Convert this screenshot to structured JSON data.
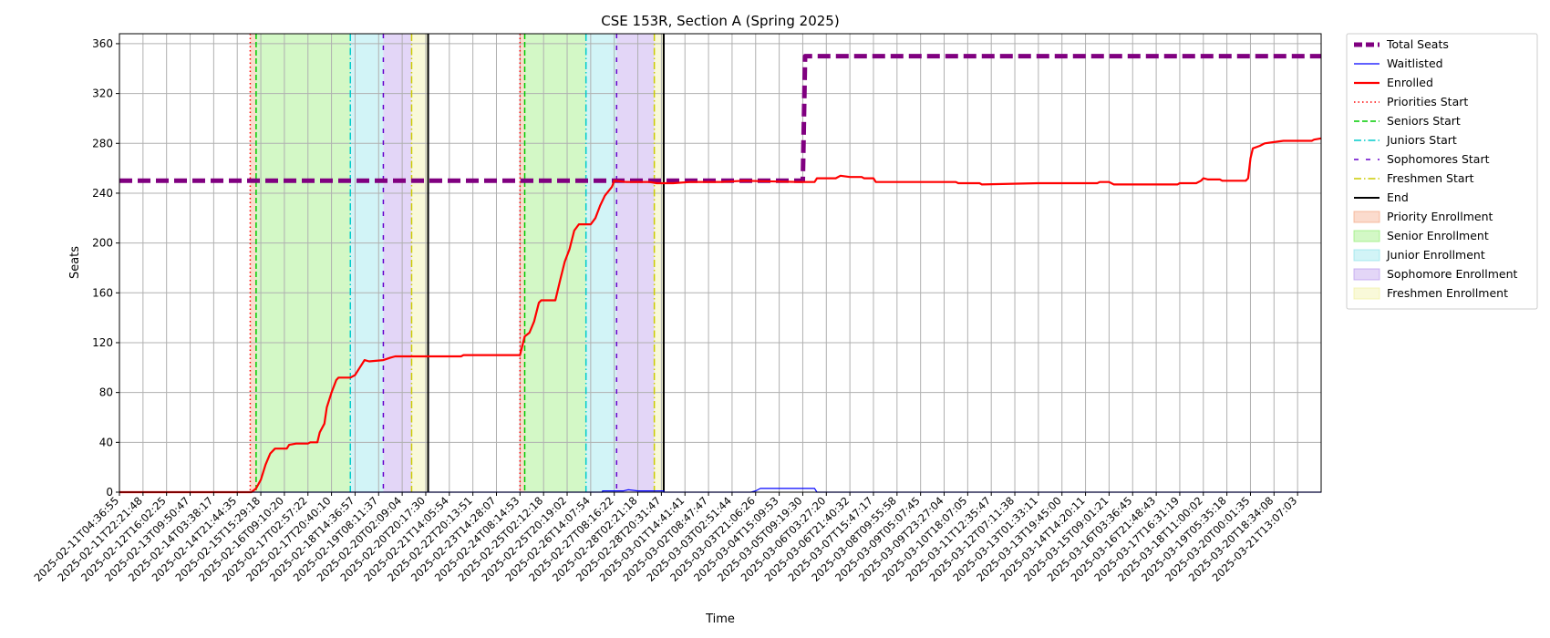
{
  "chart_data": {
    "type": "line",
    "title": "CSE 153R, Section A (Spring 2025)",
    "xlabel": "Time",
    "ylabel": "Seats",
    "ylim": [
      0,
      368
    ],
    "yticks": [
      0,
      40,
      80,
      120,
      160,
      200,
      240,
      280,
      320,
      360
    ],
    "grid": true,
    "legend_position": "outside right, top",
    "xtick_labels": [
      "2025-02-11T04:36:55",
      "2025-02-11T22:21:48",
      "2025-02-12T16:02:25",
      "2025-02-13T09:50:47",
      "2025-02-14T03:38:17",
      "2025-02-14T21:44:35",
      "2025-02-15T15:29:18",
      "2025-02-16T09:10:20",
      "2025-02-17T02:57:22",
      "2025-02-17T20:40:10",
      "2025-02-18T14:36:57",
      "2025-02-19T08:11:37",
      "2025-02-20T02:09:04",
      "2025-02-20T20:17:30",
      "2025-02-21T14:05:54",
      "2025-02-22T20:13:51",
      "2025-02-23T14:28:07",
      "2025-02-24T08:14:53",
      "2025-02-25T02:12:18",
      "2025-02-25T20:19:02",
      "2025-02-26T14:07:54",
      "2025-02-27T08:16:22",
      "2025-02-28T02:21:18",
      "2025-02-28T20:31:47",
      "2025-03-01T14:41:41",
      "2025-03-02T08:47:47",
      "2025-03-03T02:51:44",
      "2025-03-03T21:06:26",
      "2025-03-04T15:09:53",
      "2025-03-05T09:19:30",
      "2025-03-06T03:27:20",
      "2025-03-06T21:40:32",
      "2025-03-07T15:47:17",
      "2025-03-08T09:55:58",
      "2025-03-09T05:07:45",
      "2025-03-09T23:27:04",
      "2025-03-10T18:07:05",
      "2025-03-11T12:35:47",
      "2025-03-12T07:11:38",
      "2025-03-13T01:33:11",
      "2025-03-13T19:45:00",
      "2025-03-14T14:20:11",
      "2025-03-15T09:01:21",
      "2025-03-16T03:36:45",
      "2025-03-16T21:48:43",
      "2025-03-17T16:31:19",
      "2025-03-18T11:00:02",
      "2025-03-19T05:35:18",
      "2025-03-20T00:01:35",
      "2025-03-20T18:34:08",
      "2025-03-21T13:07:03"
    ],
    "x_range": [
      0,
      51
    ],
    "series": [
      {
        "name": "Total Seats",
        "color": "#800080",
        "style": "dashed-thick",
        "points": [
          [
            0,
            250
          ],
          [
            29.0,
            250
          ],
          [
            29.0,
            250
          ],
          [
            29.1,
            350
          ],
          [
            51,
            350
          ]
        ]
      },
      {
        "name": "Waitlisted",
        "color": "#0000ff",
        "style": "solid-thin",
        "points": [
          [
            0,
            0
          ],
          [
            20.5,
            0
          ],
          [
            20.5,
            1
          ],
          [
            21.4,
            1
          ],
          [
            21.6,
            2
          ],
          [
            22.0,
            1
          ],
          [
            23.1,
            1
          ],
          [
            23.1,
            0
          ],
          [
            26.8,
            0
          ],
          [
            27.0,
            1
          ],
          [
            27.2,
            3
          ],
          [
            29.5,
            3
          ],
          [
            29.6,
            0
          ],
          [
            51,
            0
          ]
        ]
      },
      {
        "name": "Enrolled",
        "color": "#ff0000",
        "style": "solid",
        "points": [
          [
            0,
            0
          ],
          [
            5.6,
            0
          ],
          [
            5.8,
            3
          ],
          [
            6.0,
            10
          ],
          [
            6.2,
            22
          ],
          [
            6.4,
            31
          ],
          [
            6.6,
            35
          ],
          [
            7.1,
            35
          ],
          [
            7.2,
            38
          ],
          [
            7.5,
            39
          ],
          [
            8.0,
            39
          ],
          [
            8.1,
            40
          ],
          [
            8.4,
            40
          ],
          [
            8.5,
            48
          ],
          [
            8.7,
            55
          ],
          [
            8.8,
            68
          ],
          [
            9.0,
            80
          ],
          [
            9.2,
            90
          ],
          [
            9.3,
            92
          ],
          [
            9.8,
            92
          ],
          [
            10.0,
            94
          ],
          [
            10.2,
            100
          ],
          [
            10.4,
            106
          ],
          [
            10.6,
            105
          ],
          [
            11.2,
            106
          ],
          [
            11.5,
            108
          ],
          [
            11.7,
            109
          ],
          [
            12.5,
            109
          ],
          [
            14.5,
            109
          ],
          [
            14.6,
            110
          ],
          [
            17.0,
            110
          ],
          [
            17.2,
            125
          ],
          [
            17.4,
            128
          ],
          [
            17.6,
            137
          ],
          [
            17.8,
            152
          ],
          [
            17.9,
            154
          ],
          [
            18.5,
            154
          ],
          [
            18.7,
            170
          ],
          [
            18.9,
            185
          ],
          [
            19.1,
            195
          ],
          [
            19.3,
            210
          ],
          [
            19.5,
            215
          ],
          [
            20.0,
            215
          ],
          [
            20.2,
            220
          ],
          [
            20.4,
            230
          ],
          [
            20.6,
            238
          ],
          [
            20.9,
            245
          ],
          [
            21.0,
            250
          ],
          [
            21.5,
            249
          ],
          [
            22.5,
            249
          ],
          [
            22.8,
            248
          ],
          [
            23.5,
            248
          ],
          [
            24.2,
            249
          ],
          [
            25.5,
            249
          ],
          [
            26.5,
            250
          ],
          [
            28.8,
            249
          ],
          [
            29.3,
            249
          ],
          [
            29.5,
            249
          ],
          [
            29.6,
            252
          ],
          [
            30.4,
            252
          ],
          [
            30.6,
            254
          ],
          [
            31.0,
            253
          ],
          [
            31.5,
            253
          ],
          [
            31.6,
            252
          ],
          [
            32.0,
            252
          ],
          [
            32.1,
            249
          ],
          [
            35.5,
            249
          ],
          [
            35.6,
            248
          ],
          [
            36.5,
            248
          ],
          [
            36.6,
            247
          ],
          [
            39.0,
            248
          ],
          [
            41.5,
            248
          ],
          [
            41.6,
            249
          ],
          [
            42.0,
            249
          ],
          [
            42.2,
            247
          ],
          [
            44.9,
            247
          ],
          [
            45.0,
            248
          ],
          [
            45.7,
            248
          ],
          [
            45.9,
            250
          ],
          [
            46.0,
            252
          ],
          [
            46.2,
            251
          ],
          [
            46.7,
            251
          ],
          [
            46.8,
            250
          ],
          [
            47.8,
            250
          ],
          [
            47.9,
            252
          ],
          [
            48.0,
            268
          ],
          [
            48.1,
            276
          ],
          [
            48.4,
            278
          ],
          [
            48.6,
            280
          ],
          [
            49.0,
            281
          ],
          [
            49.4,
            282
          ],
          [
            50.6,
            282
          ],
          [
            50.7,
            283
          ],
          [
            51,
            284
          ]
        ]
      }
    ],
    "phase_lines": [
      {
        "name": "Priorities Start",
        "color": "#ff0000",
        "style": "dotted",
        "x": [
          5.55,
          17.0
        ]
      },
      {
        "name": "Seniors Start",
        "color": "#00cc00",
        "style": "dashed",
        "x": [
          5.8,
          17.2
        ]
      },
      {
        "name": "Juniors Start",
        "color": "#00cccc",
        "style": "dashdot",
        "x": [
          9.8,
          19.8
        ]
      },
      {
        "name": "Sophomores Start",
        "color": "#6600cc",
        "style": "loosedash",
        "x": [
          11.2,
          21.1
        ]
      },
      {
        "name": "Freshmen Start",
        "color": "#cccc00",
        "style": "dashdot",
        "x": [
          12.4,
          22.7
        ]
      },
      {
        "name": "End",
        "color": "#000000",
        "style": "solid",
        "x": [
          13.1,
          23.1
        ]
      }
    ],
    "phase_bands": [
      {
        "name": "Priority Enrollment",
        "color": "#f4a582",
        "ranges": [
          [
            5.55,
            5.8
          ],
          [
            17.0,
            17.2
          ]
        ]
      },
      {
        "name": "Senior Enrollment",
        "color": "#90ee70",
        "ranges": [
          [
            5.8,
            9.8
          ],
          [
            17.2,
            19.8
          ]
        ]
      },
      {
        "name": "Junior Enrollment",
        "color": "#8fe3ea",
        "ranges": [
          [
            9.8,
            11.2
          ],
          [
            19.8,
            21.1
          ]
        ]
      },
      {
        "name": "Sophomore Enrollment",
        "color": "#b999ec",
        "ranges": [
          [
            11.2,
            12.4
          ],
          [
            21.1,
            22.7
          ]
        ]
      },
      {
        "name": "Freshmen Enrollment",
        "color": "#f0f0a0",
        "ranges": [
          [
            12.4,
            13.1
          ],
          [
            22.7,
            23.1
          ]
        ]
      }
    ]
  }
}
